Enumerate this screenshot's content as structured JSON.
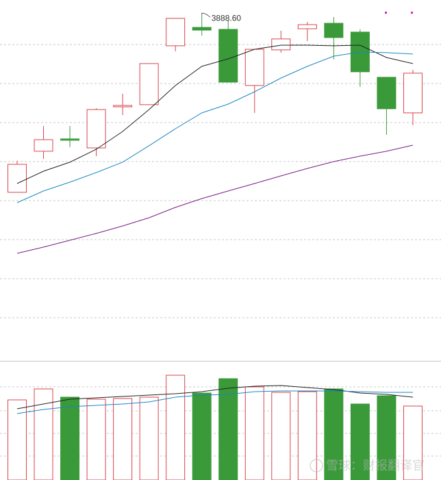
{
  "chart_data": {
    "type": "candlestick",
    "up_color": "#d9434b",
    "down_color": "#3a9a3a",
    "open": [
      3797.7,
      3818.7,
      3825.0,
      3820.4,
      3841.4,
      3842.5,
      3872.6,
      3882.0,
      3881.0,
      3852.3,
      3870.5,
      3881.3,
      3884.1,
      3879.6,
      3856.5,
      3838.3
    ],
    "high": [
      3813.8,
      3831.6,
      3831.6,
      3840.7,
      3848.1,
      3863.5,
      3886.6,
      3888.6,
      3885.5,
      3870.8,
      3880.3,
      3884.8,
      3887.3,
      3881.0,
      3856.5,
      3860.3
    ],
    "low": [
      3797.7,
      3814.8,
      3820.8,
      3816.2,
      3837.2,
      3842.5,
      3869.8,
      3877.8,
      3854.0,
      3838.3,
      3869.1,
      3875.0,
      3865.6,
      3851.6,
      3827.1,
      3832.0
    ],
    "close": [
      3812.0,
      3824.6,
      3824.3,
      3840.0,
      3842.1,
      3863.5,
      3886.6,
      3880.6,
      3854.0,
      3870.8,
      3876.1,
      3883.4,
      3876.8,
      3859.3,
      3840.4,
      3858.6
    ],
    "ylim": [
      3714,
      3896
    ],
    "annotation": "3888.60",
    "lines": [
      {
        "color": "#222222",
        "values": [
          3802.2,
          3808.5,
          3813.1,
          3819.7,
          3828.8,
          3840.0,
          3852.3,
          3862.1,
          3865.9,
          3870.8,
          3872.9,
          3872.9,
          3872.6,
          3872.9,
          3866.6,
          3863.5
        ]
      },
      {
        "color": "#1a86c4",
        "values": [
          3792.4,
          3798.4,
          3802.9,
          3807.8,
          3813.1,
          3821.5,
          3830.2,
          3838.3,
          3842.8,
          3849.1,
          3856.1,
          3862.1,
          3867.3,
          3869.4,
          3869.1,
          3868.4
        ]
      },
      {
        "color": "#7a1a86",
        "values": [
          3766.5,
          3769.7,
          3773.2,
          3776.7,
          3780.5,
          3784.7,
          3790.0,
          3794.5,
          3798.4,
          3802.2,
          3806.1,
          3809.9,
          3813.4,
          3816.2,
          3818.7,
          3821.8
        ]
      }
    ],
    "volume": {
      "type": "bar",
      "values": [
        117,
        133,
        121,
        118,
        119,
        121,
        153,
        127,
        148,
        136,
        128,
        129,
        133,
        111,
        123,
        108
      ],
      "ylim": [
        0,
        180
      ],
      "lines": [
        {
          "color": "#222222",
          "values": [
            104,
            111,
            118,
            120,
            122,
            124,
            126,
            129,
            134,
            137,
            138,
            135,
            132,
            127,
            125,
            121
          ]
        },
        {
          "color": "#1a86c4",
          "values": [
            97,
            103,
            107,
            109,
            111,
            114,
            121,
            124,
            125,
            129,
            130,
            130,
            130,
            129,
            128,
            128
          ]
        }
      ]
    }
  },
  "watermark": "雪球：财报翻译官"
}
